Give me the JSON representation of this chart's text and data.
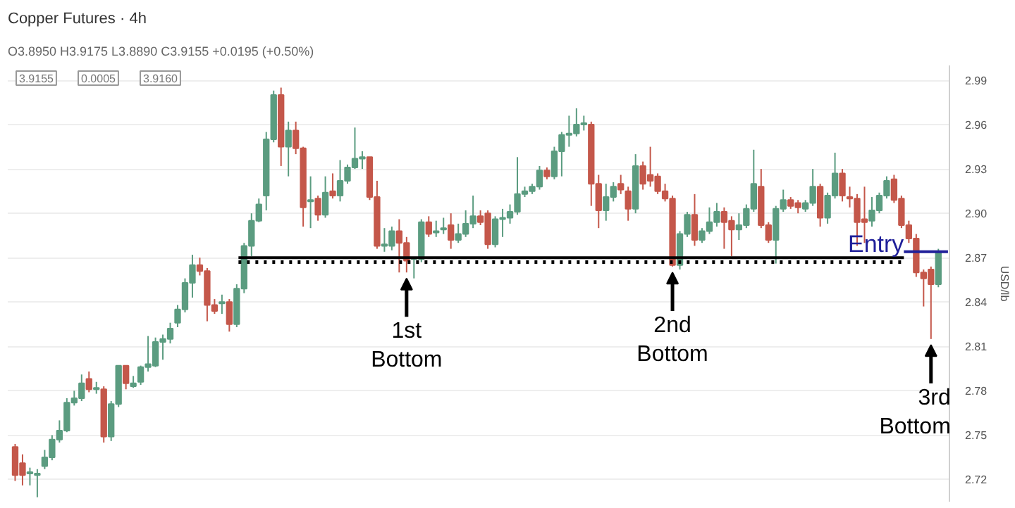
{
  "chart_data": {
    "type": "candlestick",
    "title": "Copper Futures · 4h",
    "subtitle": "O3.8950 H3.9175 L3.8890 C3.9155 +0.0195 (+0.50%)",
    "ylabel": "USD/lb",
    "categories": [
      null,
      null,
      null,
      null,
      null,
      null,
      null,
      null,
      null,
      null,
      null,
      null,
      null,
      null,
      null,
      null,
      null,
      null,
      null,
      null,
      null,
      null,
      null,
      null,
      null,
      null,
      null,
      null,
      null,
      null,
      null,
      null,
      null,
      null,
      null,
      null,
      null,
      null,
      null,
      null,
      null,
      null,
      null,
      null,
      null,
      null,
      null,
      null,
      null,
      null,
      null,
      null,
      null,
      null,
      null,
      null,
      null,
      null,
      null,
      null,
      null,
      null,
      null,
      null,
      null,
      null,
      null,
      null,
      null,
      null,
      null,
      null,
      null,
      null,
      null,
      null,
      null,
      null,
      null,
      null,
      null,
      null,
      null,
      null,
      null,
      null,
      null,
      null,
      null,
      null,
      null,
      null,
      null,
      null,
      null,
      null,
      null,
      null,
      null,
      null,
      null,
      null,
      null,
      null,
      null,
      null,
      null,
      null,
      null,
      null,
      null,
      null,
      null,
      null,
      null,
      null,
      null,
      null,
      null,
      null,
      null,
      null,
      null,
      null,
      null,
      null
    ],
    "ohlc": [
      [
        2.742,
        2.744,
        2.719,
        2.723
      ],
      [
        2.731,
        2.737,
        2.716,
        2.723
      ],
      [
        2.724,
        2.728,
        2.716,
        2.725
      ],
      [
        2.723,
        2.727,
        2.708,
        2.724
      ],
      [
        2.729,
        2.74,
        2.727,
        2.735
      ],
      [
        2.735,
        2.75,
        2.733,
        2.747
      ],
      [
        2.747,
        2.76,
        2.745,
        2.753
      ],
      [
        2.753,
        2.775,
        2.752,
        2.772
      ],
      [
        2.772,
        2.78,
        2.77,
        2.775
      ],
      [
        2.775,
        2.791,
        2.773,
        2.785
      ],
      [
        2.788,
        2.793,
        2.779,
        2.781
      ],
      [
        2.781,
        2.786,
        2.778,
        2.782
      ],
      [
        2.781,
        2.783,
        2.745,
        2.749
      ],
      [
        2.749,
        2.773,
        2.746,
        2.771
      ],
      [
        2.771,
        2.797,
        2.769,
        2.797
      ],
      [
        2.797,
        2.797,
        2.781,
        2.785
      ],
      [
        2.783,
        2.79,
        2.782,
        2.785
      ],
      [
        2.786,
        2.797,
        2.784,
        2.796
      ],
      [
        2.796,
        2.817,
        2.793,
        2.798
      ],
      [
        2.797,
        2.816,
        2.796,
        2.813
      ],
      [
        2.813,
        2.818,
        2.801,
        2.815
      ],
      [
        2.815,
        2.826,
        2.812,
        2.822
      ],
      [
        2.826,
        2.838,
        2.823,
        2.835
      ],
      [
        2.835,
        2.856,
        2.833,
        2.853
      ],
      [
        2.853,
        2.872,
        2.843,
        2.865
      ],
      [
        2.865,
        2.87,
        2.858,
        2.861
      ],
      [
        2.861,
        2.863,
        2.827,
        2.838
      ],
      [
        2.838,
        2.842,
        2.832,
        2.834
      ],
      [
        2.839,
        2.845,
        2.832,
        2.84
      ],
      [
        2.84,
        2.842,
        2.82,
        2.825
      ],
      [
        2.825,
        2.852,
        2.823,
        2.849
      ],
      [
        2.849,
        2.88,
        2.846,
        2.878
      ],
      [
        2.878,
        2.9,
        2.871,
        2.895
      ],
      [
        2.895,
        2.91,
        2.894,
        2.906
      ],
      [
        2.912,
        2.955,
        2.902,
        2.95
      ],
      [
        2.95,
        2.983,
        2.948,
        2.98
      ],
      [
        2.98,
        2.985,
        2.932,
        2.945
      ],
      [
        2.945,
        2.962,
        2.925,
        2.956
      ],
      [
        2.956,
        2.962,
        2.94,
        2.944
      ],
      [
        2.944,
        2.945,
        2.891,
        2.904
      ],
      [
        2.908,
        2.925,
        2.89,
        2.909
      ],
      [
        2.91,
        2.912,
        2.895,
        2.899
      ],
      [
        2.899,
        2.925,
        2.897,
        2.914
      ],
      [
        2.915,
        2.927,
        2.91,
        2.912
      ],
      [
        2.912,
        2.936,
        2.908,
        2.922
      ],
      [
        2.922,
        2.933,
        2.92,
        2.931
      ],
      [
        2.931,
        2.958,
        2.93,
        2.937
      ],
      [
        2.937,
        2.942,
        2.93,
        2.938
      ],
      [
        2.938,
        2.938,
        2.909,
        2.911
      ],
      [
        2.911,
        2.922,
        2.876,
        2.878
      ],
      [
        2.878,
        2.89,
        2.874,
        2.879
      ],
      [
        2.878,
        2.891,
        2.875,
        2.888
      ],
      [
        2.888,
        2.896,
        2.86,
        2.88
      ],
      [
        2.88,
        2.884,
        2.86,
        2.868
      ],
      [
        2.869,
        2.87,
        2.856,
        2.87
      ],
      [
        2.869,
        2.896,
        2.867,
        2.894
      ],
      [
        2.894,
        2.898,
        2.884,
        2.886
      ],
      [
        2.887,
        2.895,
        2.884,
        2.888
      ],
      [
        2.889,
        2.897,
        2.886,
        2.89
      ],
      [
        2.892,
        2.9,
        2.876,
        2.882
      ],
      [
        2.882,
        2.893,
        2.88,
        2.886
      ],
      [
        2.886,
        2.902,
        2.884,
        2.893
      ],
      [
        2.893,
        2.912,
        2.89,
        2.898
      ],
      [
        2.898,
        2.902,
        2.892,
        2.894
      ],
      [
        2.9,
        2.902,
        2.876,
        2.879
      ],
      [
        2.879,
        2.898,
        2.877,
        2.896
      ],
      [
        2.896,
        2.903,
        2.884,
        2.897
      ],
      [
        2.897,
        2.906,
        2.893,
        2.901
      ],
      [
        2.901,
        2.938,
        2.899,
        2.913
      ],
      [
        2.913,
        2.918,
        2.911,
        2.915
      ],
      [
        2.915,
        2.92,
        2.913,
        2.918
      ],
      [
        2.918,
        2.932,
        2.916,
        2.929
      ],
      [
        2.929,
        2.931,
        2.923,
        2.925
      ],
      [
        2.925,
        2.945,
        2.923,
        2.942
      ],
      [
        2.942,
        2.955,
        2.925,
        2.953
      ],
      [
        2.953,
        2.966,
        2.945,
        2.954
      ],
      [
        2.954,
        2.971,
        2.952,
        2.96
      ],
      [
        2.96,
        2.966,
        2.956,
        2.961
      ],
      [
        2.96,
        2.962,
        2.905,
        2.92
      ],
      [
        2.92,
        2.926,
        2.89,
        2.902
      ],
      [
        2.902,
        2.92,
        2.895,
        2.911
      ],
      [
        2.911,
        2.921,
        2.908,
        2.918
      ],
      [
        2.92,
        2.926,
        2.913,
        2.916
      ],
      [
        2.915,
        2.918,
        2.895,
        2.903
      ],
      [
        2.903,
        2.94,
        2.9,
        2.932
      ],
      [
        2.932,
        2.935,
        2.916,
        2.92
      ],
      [
        2.926,
        2.945,
        2.918,
        2.922
      ],
      [
        2.925,
        2.927,
        2.913,
        2.915
      ],
      [
        2.915,
        2.92,
        2.908,
        2.91
      ],
      [
        2.91,
        2.912,
        2.864,
        2.865
      ],
      [
        2.865,
        2.888,
        2.862,
        2.886
      ],
      [
        2.886,
        2.901,
        2.884,
        2.899
      ],
      [
        2.899,
        2.913,
        2.878,
        2.882
      ],
      [
        2.882,
        2.89,
        2.88,
        2.888
      ],
      [
        2.888,
        2.904,
        2.886,
        2.894
      ],
      [
        2.894,
        2.907,
        2.891,
        2.901
      ],
      [
        2.901,
        2.904,
        2.876,
        2.894
      ],
      [
        2.895,
        2.898,
        2.871,
        2.889
      ],
      [
        2.889,
        2.9,
        2.882,
        2.892
      ],
      [
        2.892,
        2.906,
        2.89,
        2.903
      ],
      [
        2.903,
        2.943,
        2.901,
        2.92
      ],
      [
        2.918,
        2.93,
        2.89,
        2.892
      ],
      [
        2.892,
        2.894,
        2.88,
        2.882
      ],
      [
        2.882,
        2.905,
        2.866,
        2.903
      ],
      [
        2.903,
        2.916,
        2.901,
        2.909
      ],
      [
        2.909,
        2.911,
        2.903,
        2.905
      ],
      [
        2.907,
        2.909,
        2.9,
        2.904
      ],
      [
        2.903,
        2.909,
        2.901,
        2.907
      ],
      [
        2.907,
        2.93,
        2.905,
        2.918
      ],
      [
        2.918,
        2.92,
        2.891,
        2.897
      ],
      [
        2.897,
        2.914,
        2.893,
        2.912
      ],
      [
        2.912,
        2.941,
        2.91,
        2.927
      ],
      [
        2.927,
        2.93,
        2.908,
        2.912
      ],
      [
        2.911,
        2.918,
        2.904,
        2.91
      ],
      [
        2.91,
        2.913,
        2.878,
        2.894
      ],
      [
        2.896,
        2.918,
        2.88,
        2.894
      ],
      [
        2.895,
        2.911,
        2.891,
        2.902
      ],
      [
        2.902,
        2.914,
        2.9,
        2.912
      ],
      [
        2.912,
        2.925,
        2.91,
        2.922
      ],
      [
        2.923,
        2.926,
        2.907,
        2.909
      ],
      [
        2.91,
        2.912,
        2.89,
        2.892
      ],
      [
        2.892,
        2.895,
        2.88,
        2.883
      ],
      [
        2.883,
        2.886,
        2.857,
        2.86
      ],
      [
        2.86,
        2.862,
        2.837,
        2.856
      ],
      [
        2.862,
        2.864,
        2.815,
        2.852
      ],
      [
        2.852,
        2.876,
        2.85,
        2.874
      ]
    ],
    "colors": [
      "#c4574a",
      "#c4574a",
      "#5b9c80",
      "#5b9c80",
      "#5b9c80",
      "#5b9c80",
      "#5b9c80",
      "#5b9c80",
      "#5b9c80",
      "#5b9c80",
      "#c4574a",
      "#5b9c80",
      "#c4574a",
      "#5b9c80",
      "#5b9c80",
      "#c4574a",
      "#5b9c80",
      "#5b9c80",
      "#5b9c80",
      "#5b9c80",
      "#5b9c80",
      "#5b9c80",
      "#5b9c80",
      "#5b9c80",
      "#5b9c80",
      "#c4574a",
      "#c4574a",
      "#c4574a",
      "#5b9c80",
      "#c4574a",
      "#5b9c80",
      "#5b9c80",
      "#5b9c80",
      "#5b9c80",
      "#5b9c80",
      "#5b9c80",
      "#c4574a",
      "#5b9c80",
      "#c4574a",
      "#c4574a",
      "#5b9c80",
      "#c4574a",
      "#5b9c80",
      "#c4574a",
      "#5b9c80",
      "#5b9c80",
      "#5b9c80",
      "#5b9c80",
      "#c4574a",
      "#c4574a",
      "#5b9c80",
      "#5b9c80",
      "#c4574a",
      "#c4574a",
      "#5b9c80",
      "#5b9c80",
      "#c4574a",
      "#5b9c80",
      "#5b9c80",
      "#c4574a",
      "#5b9c80",
      "#5b9c80",
      "#5b9c80",
      "#c4574a",
      "#c4574a",
      "#5b9c80",
      "#5b9c80",
      "#5b9c80",
      "#5b9c80",
      "#5b9c80",
      "#5b9c80",
      "#5b9c80",
      "#c4574a",
      "#5b9c80",
      "#5b9c80",
      "#5b9c80",
      "#5b9c80",
      "#5b9c80",
      "#c4574a",
      "#c4574a",
      "#5b9c80",
      "#5b9c80",
      "#c4574a",
      "#c4574a",
      "#5b9c80",
      "#c4574a",
      "#c4574a",
      "#c4574a",
      "#c4574a",
      "#c4574a",
      "#5b9c80",
      "#5b9c80",
      "#c4574a",
      "#5b9c80",
      "#5b9c80",
      "#5b9c80",
      "#c4574a",
      "#c4574a",
      "#5b9c80",
      "#5b9c80",
      "#5b9c80",
      "#c4574a",
      "#c4574a",
      "#5b9c80",
      "#5b9c80",
      "#c4574a",
      "#c4574a",
      "#5b9c80",
      "#5b9c80",
      "#c4574a",
      "#5b9c80",
      "#5b9c80",
      "#c4574a",
      "#c4574a",
      "#c4574a",
      "#c4574a",
      "#5b9c80",
      "#5b9c80",
      "#5b9c80",
      "#c4574a",
      "#c4574a",
      "#c4574a",
      "#c4574a",
      "#c4574a",
      "#c4574a",
      "#5b9c80"
    ],
    "ref_lines": [
      {
        "axis": "y",
        "value": 2.87,
        "color": "#000000",
        "line_style": "solid"
      },
      {
        "axis": "y",
        "value": 2.867,
        "color": "#000000",
        "line_style": "dotted"
      },
      {
        "axis": "y",
        "value": 2.874,
        "color": "#1f1f99",
        "line_style": "solid",
        "label": "Entry"
      }
    ],
    "annotations": [
      "3.9155",
      "0.0005",
      "3.9160",
      "1st Bottom",
      "2nd Bottom",
      "3rd Bottom"
    ],
    "ylim": [
      2.705,
      3.0
    ],
    "yticks": [
      2.72,
      2.75,
      2.78,
      2.81,
      2.84,
      2.87,
      {
        "value": 2.9,
        "label": "2.90"
      },
      2.93,
      2.96,
      2.99
    ],
    "tick_labels": "y",
    "grid": "y"
  }
}
